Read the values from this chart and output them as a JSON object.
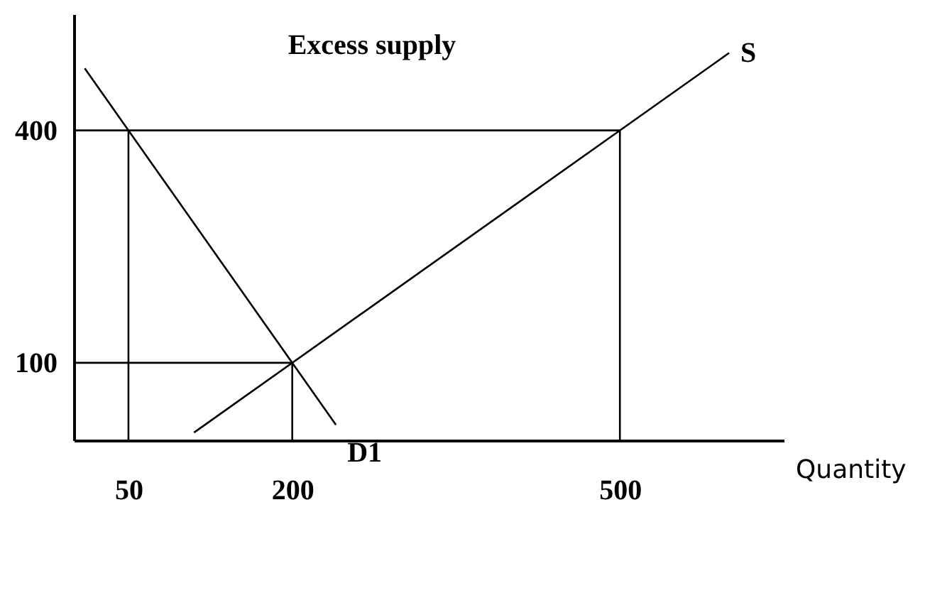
{
  "chart_data": {
    "type": "line",
    "xlabel": "Quantity",
    "xlim": [
      0,
      650
    ],
    "ylim": [
      0,
      550
    ],
    "xticks": [
      50,
      200,
      500
    ],
    "yticks": [
      100,
      400
    ],
    "grid": false,
    "marker": "none",
    "line_style": "solid",
    "annotations": [
      "Excess supply"
    ],
    "series": [
      {
        "name": "S",
        "color": "#000000",
        "x": [
          110,
          600
        ],
        "values": [
          10,
          500
        ]
      },
      {
        "name": "D1",
        "color": "#000000",
        "x": [
          10,
          240
        ],
        "values": [
          480,
          20
        ]
      },
      {
        "color": "#000000",
        "x": [
          0,
          500
        ],
        "values": [
          400,
          400
        ]
      },
      {
        "color": "#000000",
        "x": [
          0,
          200
        ],
        "values": [
          100,
          100
        ]
      },
      {
        "color": "#000000",
        "x": [
          50,
          50
        ],
        "values": [
          0,
          400
        ]
      },
      {
        "color": "#000000",
        "x": [
          200,
          200
        ],
        "values": [
          0,
          100
        ]
      },
      {
        "color": "#000000",
        "x": [
          500,
          500
        ],
        "values": [
          0,
          400
        ]
      }
    ]
  }
}
